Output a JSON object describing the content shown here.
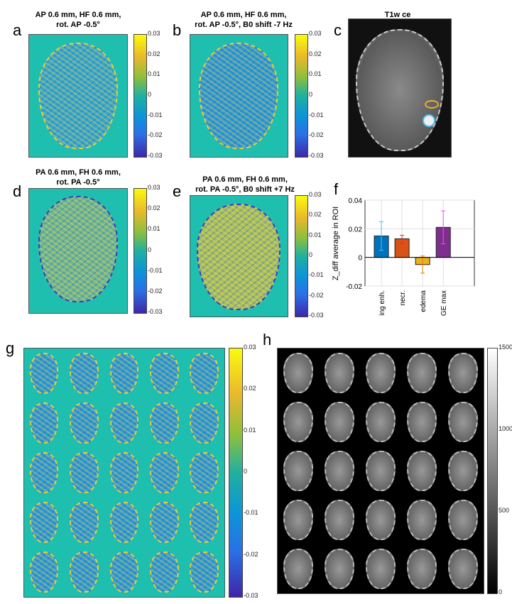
{
  "panels": {
    "a": {
      "label": "a",
      "title1": "AP 0.6 mm, HF 0.6 mm,",
      "title2": "rot. AP -0.5°"
    },
    "b": {
      "label": "b",
      "title1": "AP 0.6 mm, HF 0.6 mm,",
      "title2": "rot. AP -0.5°, B0 shift -7 Hz"
    },
    "c": {
      "label": "c",
      "title1": "T1w ce"
    },
    "d": {
      "label": "d",
      "title1": "PA 0.6 mm, FH 0.6 mm,",
      "title2": "rot. PA -0.5°"
    },
    "e": {
      "label": "e",
      "title1": "PA 0.6 mm, FH 0.6 mm,",
      "title2": "rot. PA -0.5°, B0 shift +7 Hz"
    },
    "f": {
      "label": "f"
    },
    "g": {
      "label": "g"
    },
    "h": {
      "label": "h"
    }
  },
  "colorbar_ticks": [
    "0.03",
    "0.02",
    "0.01",
    "0",
    "-0.01",
    "-0.02",
    "-0.03"
  ],
  "gray_colorbar_ticks": [
    "1500",
    "1000",
    "500",
    "0"
  ],
  "chart_data": {
    "type": "bar",
    "categories": [
      "ring enh.",
      "necr.",
      "edema",
      "DGE max"
    ],
    "values": [
      0.015,
      0.013,
      -0.005,
      0.021
    ],
    "error_low": [
      0.005,
      0.0095,
      -0.011,
      0.0095
    ],
    "error_high": [
      0.025,
      0.0155,
      0.001,
      0.0325
    ],
    "colors": [
      "#0072bd",
      "#d95319",
      "#edb120",
      "#7e2f8e"
    ],
    "error_colors": [
      "#4dbeee",
      "#ff2020",
      "#e08000",
      "#ff40ff"
    ],
    "ylabel": "Z_diff average in ROI",
    "ylim": [
      -0.02,
      0.04
    ],
    "yticks": [
      "0.04",
      "0.02",
      "0",
      "-0.02"
    ],
    "grid": true
  }
}
